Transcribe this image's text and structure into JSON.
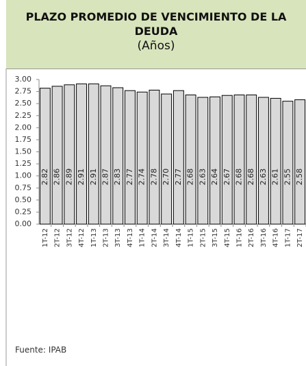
{
  "chart_data": {
    "type": "bar",
    "title": "PLAZO PROMEDIO DE VENCIMIENTO DE LA DEUDA",
    "subtitle": "(Años)",
    "categories": [
      "1T-12",
      "2T-12",
      "3T-12",
      "4T-12",
      "1T-13",
      "2T-13",
      "3T-13",
      "4T-13",
      "1T-14",
      "2T-14",
      "3T-14",
      "4T-14",
      "1T-15",
      "2T-15",
      "3T-15",
      "4T-15",
      "1T-16",
      "2T-16",
      "3T-16",
      "4T-16",
      "1T-17",
      "2T-17"
    ],
    "values": [
      2.82,
      2.86,
      2.89,
      2.91,
      2.91,
      2.87,
      2.83,
      2.77,
      2.74,
      2.78,
      2.7,
      2.77,
      2.68,
      2.63,
      2.64,
      2.67,
      2.68,
      2.68,
      2.63,
      2.61,
      2.55,
      2.58
    ],
    "value_labels": [
      "2.82",
      "2.86",
      "2.89",
      "2.91",
      "2.91",
      "2.87",
      "2.83",
      "2.77",
      "2.74",
      "2.78",
      "2.70",
      "2.77",
      "2.68",
      "2.63",
      "2.64",
      "2.67",
      "2.68",
      "2.68",
      "2.63",
      "2.61",
      "2.55",
      "2.58"
    ],
    "color": "#d9d9d9",
    "ylim": [
      0,
      3
    ],
    "yticks": [
      {
        "value": 0,
        "label": "0.00"
      },
      {
        "value": 0.25,
        "label": "0.25"
      },
      {
        "value": 0.5,
        "label": "0.50"
      },
      {
        "value": 0.75,
        "label": "0.75"
      },
      {
        "value": 1,
        "label": "1.00"
      },
      {
        "value": 1.25,
        "label": "1.25"
      },
      {
        "value": 1.5,
        "label": "1.50"
      },
      {
        "value": 1.75,
        "label": "1.75"
      },
      {
        "value": 2,
        "label": "2.00"
      },
      {
        "value": 2.25,
        "label": "2.25"
      },
      {
        "value": 2.5,
        "label": "2.50"
      },
      {
        "value": 2.75,
        "label": "2.75"
      },
      {
        "value": 3,
        "label": "3.00"
      }
    ],
    "grid": false,
    "source": "Fuente: IPAB"
  }
}
